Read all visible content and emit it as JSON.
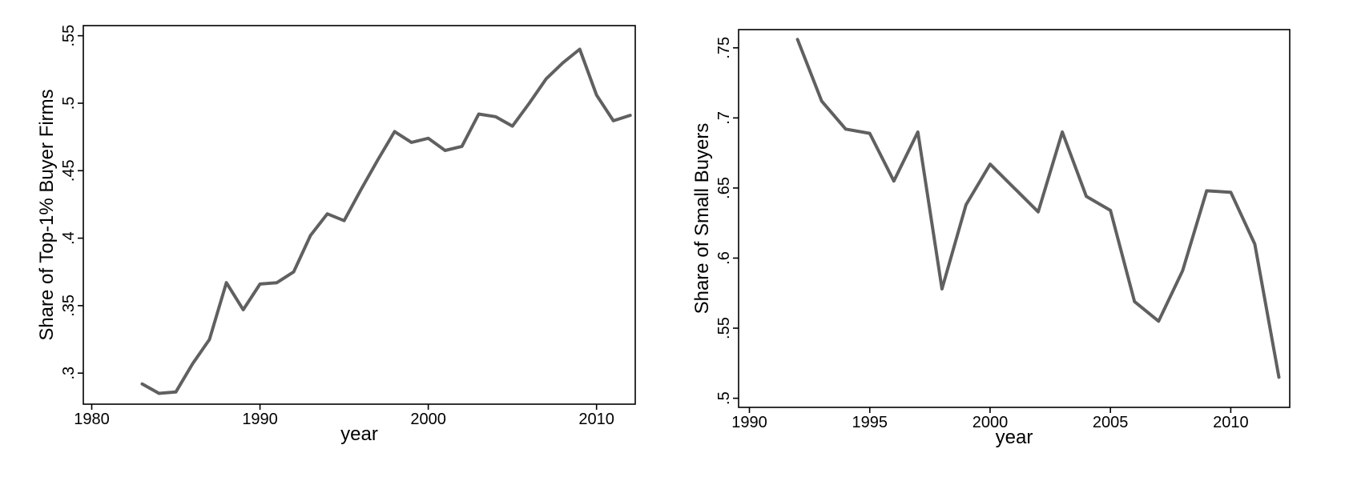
{
  "page": {
    "background": "#ffffff",
    "figure_description": "Two line charts side by side"
  },
  "chart_data": [
    {
      "type": "line",
      "title": "",
      "xlabel": "year",
      "ylabel": "Share of Top-1% Buyer Firms",
      "x": [
        1983,
        1984,
        1985,
        1986,
        1987,
        1988,
        1989,
        1990,
        1991,
        1992,
        1993,
        1994,
        1995,
        1996,
        1997,
        1998,
        1999,
        2000,
        2001,
        2002,
        2003,
        2004,
        2005,
        2006,
        2007,
        2008,
        2009,
        2010,
        2011,
        2012
      ],
      "series": [
        {
          "name": "Share of Top-1% Buyer Firms",
          "values": [
            0.292,
            0.285,
            0.286,
            0.307,
            0.325,
            0.367,
            0.347,
            0.366,
            0.367,
            0.375,
            0.402,
            0.418,
            0.413,
            0.436,
            0.458,
            0.479,
            0.471,
            0.474,
            0.465,
            0.468,
            0.492,
            0.49,
            0.483,
            0.5,
            0.518,
            0.53,
            0.54,
            0.506,
            0.487,
            0.491
          ]
        }
      ],
      "xlim": [
        1979.5,
        2012.3
      ],
      "ylim": [
        0.277,
        0.5575
      ],
      "xticks": [
        1980,
        1990,
        2000,
        2010
      ],
      "xtick_labels": [
        "1980",
        "1990",
        "2000",
        "2010"
      ],
      "yticks": [
        0.3,
        0.35,
        0.4,
        0.45,
        0.5,
        0.55
      ],
      "ytick_labels": [
        ".3",
        ".35",
        ".4",
        ".45",
        ".5",
        ".55"
      ],
      "line_color": "#606060",
      "axis_color": "#000000",
      "grid": false,
      "legend": "none"
    },
    {
      "type": "line",
      "title": "",
      "xlabel": "year",
      "ylabel": "Share of Small Buyers",
      "x": [
        1992,
        1993,
        1994,
        1995,
        1996,
        1997,
        1998,
        1999,
        2000,
        2001,
        2002,
        2003,
        2004,
        2005,
        2006,
        2007,
        2008,
        2009,
        2010,
        2011,
        2012
      ],
      "series": [
        {
          "name": "Share of Small Buyers",
          "values": [
            0.756,
            0.712,
            0.692,
            0.689,
            0.655,
            0.69,
            0.578,
            0.638,
            0.667,
            0.65,
            0.633,
            0.69,
            0.644,
            0.634,
            0.569,
            0.555,
            0.591,
            0.648,
            0.647,
            0.61,
            0.515
          ]
        }
      ],
      "xlim": [
        1989.55,
        2012.45
      ],
      "ylim": [
        0.4935,
        0.763
      ],
      "xticks": [
        1990,
        1995,
        2000,
        2005,
        2010
      ],
      "xtick_labels": [
        "1990",
        "1995",
        "2000",
        "2005",
        "2010"
      ],
      "yticks": [
        0.5,
        0.55,
        0.6,
        0.65,
        0.7,
        0.75
      ],
      "ytick_labels": [
        ".5",
        ".55",
        ".6",
        ".65",
        ".7",
        ".75"
      ],
      "line_color": "#606060",
      "axis_color": "#000000",
      "grid": false,
      "legend": "none"
    }
  ]
}
